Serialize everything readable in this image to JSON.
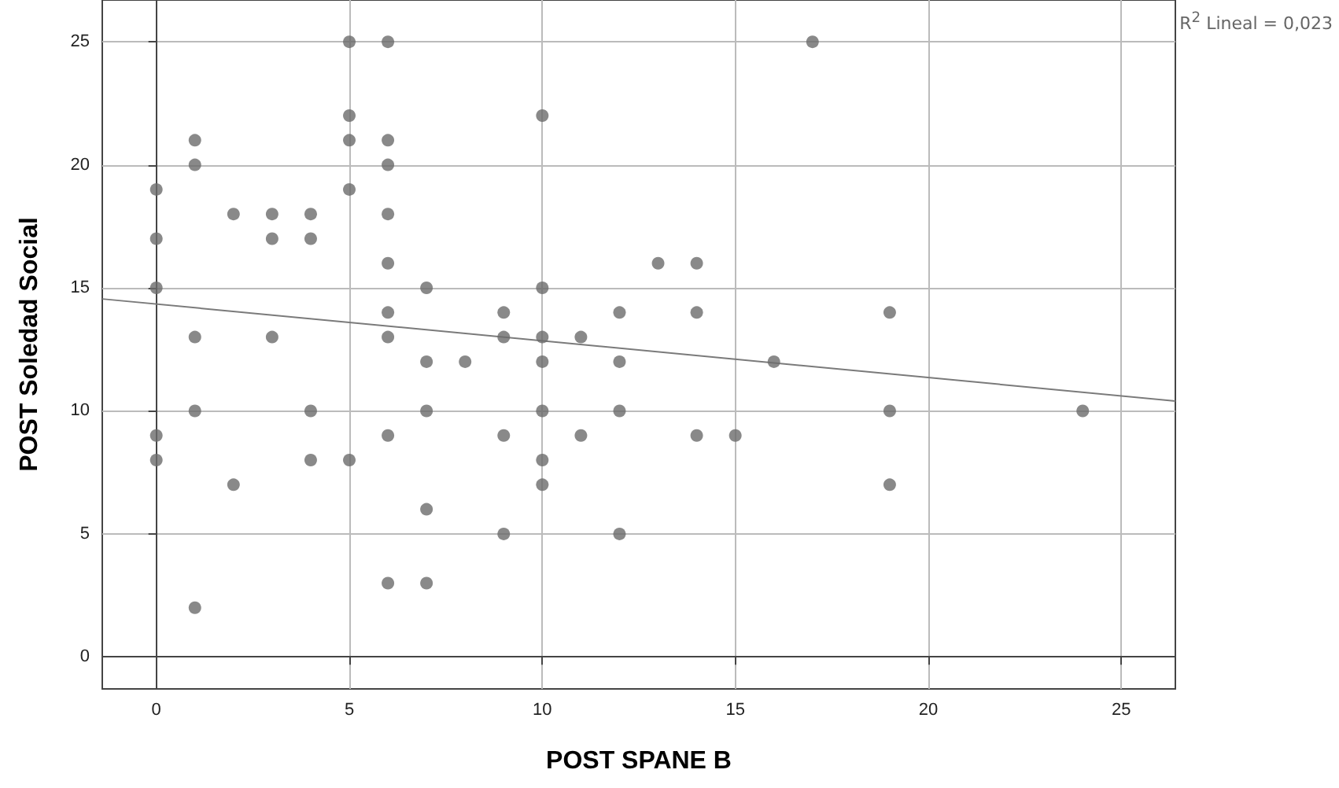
{
  "chart_data": {
    "type": "scatter",
    "xlabel": "POST SPANE B",
    "ylabel": "POST Soledad Social",
    "annotations": [
      "R$^{2}$ Lineal = 0,023"
    ],
    "xlim": [
      -1.4,
      26.4
    ],
    "ylim": [
      -1.3,
      26.7
    ],
    "xticks": [
      0,
      5,
      10,
      15,
      20,
      25
    ],
    "yticks": [
      0,
      5,
      10,
      15,
      20,
      25
    ],
    "grid": true,
    "series": [
      {
        "type": "scatter",
        "color": "#6b6b6b",
        "marker": "circle",
        "x": [
          0,
          0,
          0,
          0,
          0,
          1,
          1,
          1,
          1,
          1,
          2,
          2,
          3,
          3,
          3,
          4,
          4,
          4,
          4,
          5,
          5,
          5,
          5,
          5,
          6,
          6,
          6,
          6,
          6,
          6,
          6,
          6,
          6,
          7,
          7,
          7,
          7,
          7,
          8,
          9,
          9,
          9,
          9,
          10,
          10,
          10,
          10,
          10,
          10,
          10,
          11,
          11,
          12,
          12,
          12,
          12,
          13,
          14,
          14,
          14,
          15,
          16,
          17,
          19,
          19,
          19,
          24
        ],
        "values": [
          19,
          17,
          15,
          9,
          8,
          21,
          20,
          13,
          10,
          2,
          18,
          7,
          18,
          17,
          13,
          18,
          17,
          10,
          8,
          25,
          22,
          21,
          19,
          8,
          25,
          21,
          20,
          18,
          16,
          14,
          13,
          9,
          3,
          15,
          12,
          10,
          6,
          3,
          12,
          14,
          13,
          9,
          5,
          22,
          15,
          13,
          12,
          10,
          8,
          7,
          13,
          9,
          14,
          12,
          10,
          5,
          16,
          16,
          14,
          9,
          9,
          12,
          25,
          14,
          10,
          7,
          10
        ]
      },
      {
        "type": "line",
        "color": "#7a7a7a",
        "marker": "none",
        "line_style": "solid",
        "x": [
          -1.4,
          26.4
        ],
        "values": [
          14.55,
          10.4
        ]
      }
    ]
  }
}
